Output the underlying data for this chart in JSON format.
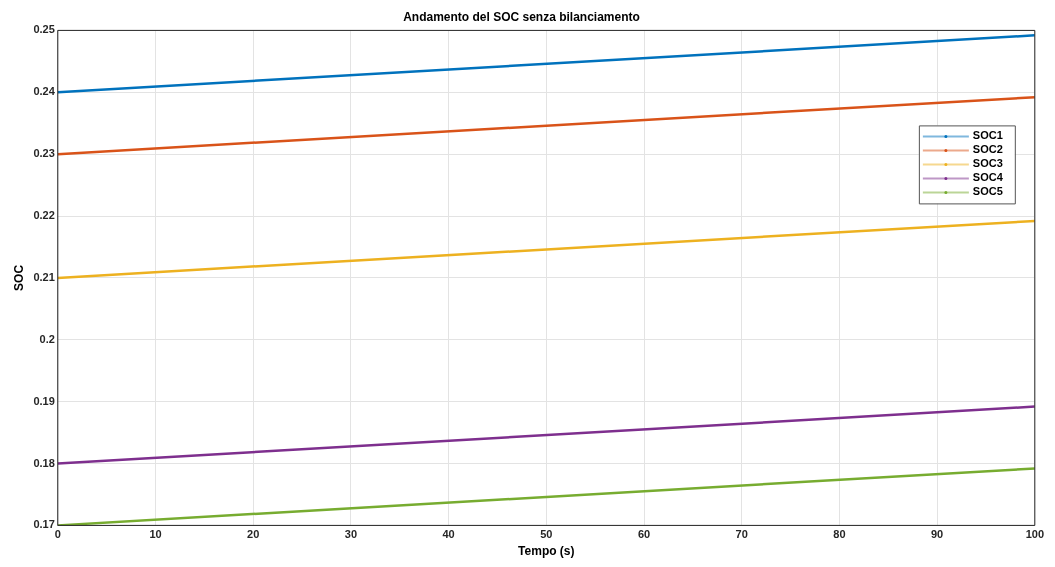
{
  "chart_data": {
    "type": "line",
    "title": "Andamento del SOC senza bilanciamento",
    "xlabel": "Tempo (s)",
    "ylabel": "SOC",
    "x": [
      0,
      100
    ],
    "series": [
      {
        "name": "SOC1",
        "color": "#0072bd",
        "values": [
          0.24,
          0.2492
        ]
      },
      {
        "name": "SOC2",
        "color": "#d95319",
        "values": [
          0.23,
          0.2392
        ]
      },
      {
        "name": "SOC3",
        "color": "#edb120",
        "values": [
          0.21,
          0.2192
        ]
      },
      {
        "name": "SOC4",
        "color": "#7e2f8e",
        "values": [
          0.18,
          0.1892
        ]
      },
      {
        "name": "SOC5",
        "color": "#77ac30",
        "values": [
          0.17,
          0.1792
        ]
      }
    ],
    "xlim": [
      0,
      100
    ],
    "xticks": [
      0,
      10,
      20,
      30,
      40,
      50,
      60,
      70,
      80,
      90,
      100
    ],
    "ylim": [
      0.17,
      0.25
    ],
    "yticks": [
      0.17,
      0.18,
      0.19,
      0.2,
      0.21,
      0.22,
      0.23,
      0.24,
      0.25
    ],
    "grid": true,
    "legend": "top right",
    "line_style": "solid"
  }
}
